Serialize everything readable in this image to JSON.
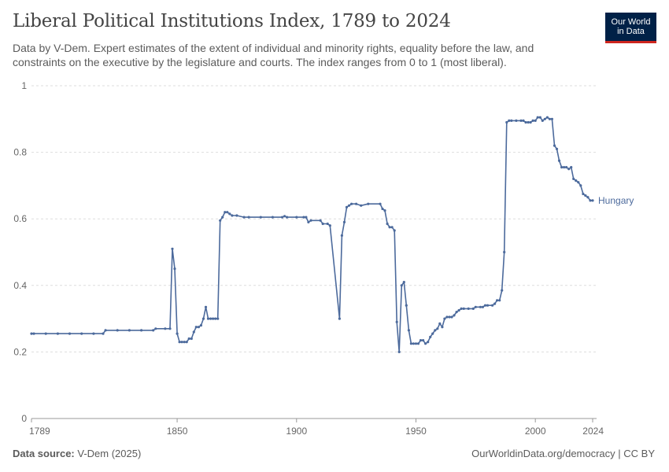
{
  "header": {
    "title": "Liberal Political Institutions Index, 1789 to 2024",
    "subtitle": "Data by V-Dem. Expert estimates of the extent of individual and minority rights, equality before the law, and constraints on the executive by the legislature and courts. The index ranges from 0 to 1 (most liberal).",
    "logo_line1": "Our World",
    "logo_line2": "in Data"
  },
  "footer": {
    "source_label": "Data source:",
    "source_value": "V-Dem (2025)",
    "license": "OurWorldinData.org/democracy | CC BY"
  },
  "colors": {
    "line": "#4c6a9c",
    "grid": "#dddddd",
    "axis": "#999999"
  },
  "chart_data": {
    "type": "line",
    "title": "Liberal Political Institutions Index, 1789 to 2024",
    "xlabel": "",
    "ylabel": "",
    "xlim": [
      1789,
      2024
    ],
    "ylim": [
      0,
      1
    ],
    "x_ticks": [
      "1789",
      "1850",
      "1900",
      "1950",
      "2000",
      "2024"
    ],
    "y_ticks": [
      "0",
      "0.2",
      "0.4",
      "0.6",
      "0.8",
      "1"
    ],
    "grid": "horizontal dashed",
    "series": [
      {
        "name": "Hungary",
        "color": "#4c6a9c",
        "points": [
          [
            1789,
            0.255
          ],
          [
            1820,
            0.255
          ],
          [
            1819,
            0.255
          ],
          [
            1819,
            0.255
          ]
        ]
      }
    ]
  }
}
